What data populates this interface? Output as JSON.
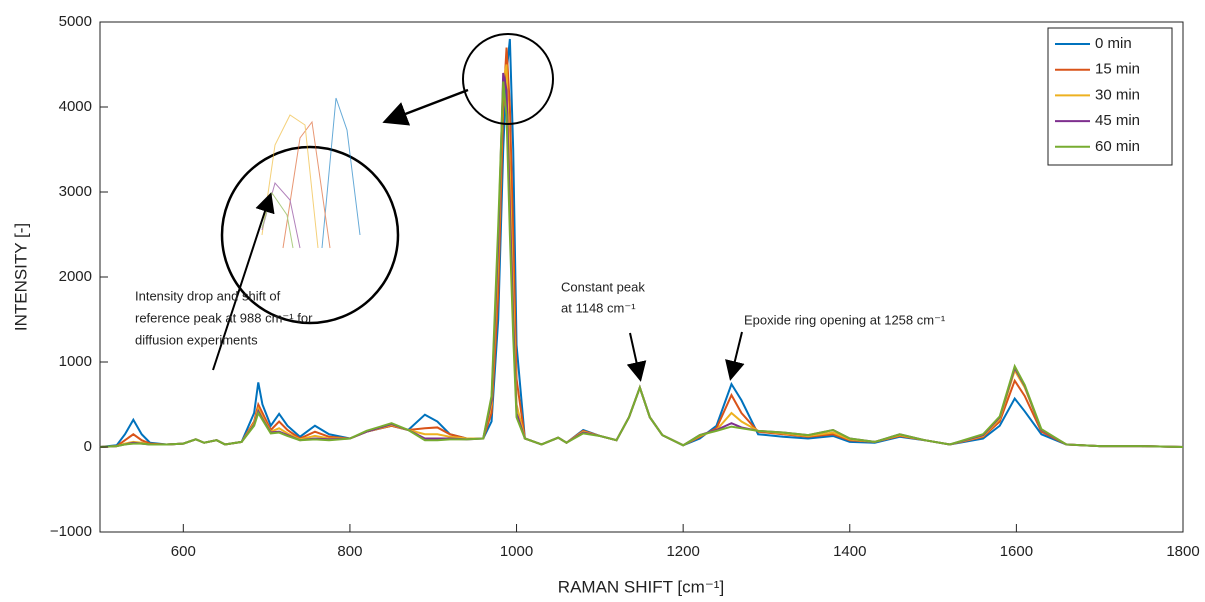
{
  "chart_data": {
    "type": "line",
    "xlabel": "RAMAN SHIFT [cm⁻¹]",
    "ylabel": "INTENSITY [-]",
    "x": [
      500,
      520,
      530,
      540,
      550,
      560,
      580,
      600,
      615,
      625,
      640,
      650,
      670,
      685,
      690,
      695,
      705,
      715,
      725,
      740,
      758,
      775,
      800,
      820,
      850,
      870,
      890,
      905,
      920,
      940,
      960,
      970,
      978,
      984,
      988,
      992,
      996,
      1000,
      1010,
      1030,
      1050,
      1060,
      1080,
      1100,
      1120,
      1135,
      1148,
      1160,
      1175,
      1200,
      1220,
      1240,
      1258,
      1270,
      1290,
      1320,
      1350,
      1380,
      1400,
      1430,
      1460,
      1490,
      1520,
      1560,
      1580,
      1598,
      1610,
      1630,
      1660,
      1700,
      1750,
      1800
    ],
    "series": [
      {
        "name": "0 min",
        "color": "#0072bd",
        "values": [
          0,
          20,
          150,
          320,
          150,
          50,
          30,
          40,
          90,
          50,
          80,
          30,
          60,
          400,
          760,
          500,
          250,
          390,
          250,
          120,
          250,
          150,
          100,
          180,
          250,
          200,
          380,
          300,
          150,
          100,
          100,
          300,
          1500,
          3500,
          4400,
          4800,
          3500,
          1200,
          100,
          30,
          110,
          50,
          200,
          130,
          80,
          350,
          700,
          350,
          140,
          20,
          100,
          250,
          740,
          550,
          150,
          120,
          100,
          130,
          60,
          50,
          120,
          80,
          30,
          100,
          250,
          570,
          420,
          150,
          30,
          10,
          10,
          0
        ]
      },
      {
        "name": "15 min",
        "color": "#d95319",
        "values": [
          0,
          10,
          80,
          150,
          80,
          40,
          30,
          40,
          90,
          50,
          80,
          30,
          60,
          300,
          500,
          400,
          200,
          300,
          200,
          100,
          180,
          120,
          100,
          180,
          250,
          200,
          220,
          230,
          150,
          100,
          100,
          400,
          1800,
          4000,
          4700,
          4000,
          2500,
          800,
          100,
          30,
          110,
          50,
          190,
          130,
          80,
          350,
          700,
          350,
          140,
          20,
          120,
          220,
          610,
          400,
          180,
          150,
          120,
          150,
          80,
          60,
          130,
          80,
          30,
          120,
          300,
          780,
          600,
          180,
          30,
          10,
          10,
          0
        ]
      },
      {
        "name": "30 min",
        "color": "#edb120",
        "values": [
          0,
          10,
          40,
          60,
          50,
          30,
          30,
          40,
          90,
          50,
          80,
          30,
          60,
          280,
          450,
          350,
          180,
          220,
          160,
          90,
          130,
          100,
          100,
          180,
          260,
          200,
          150,
          150,
          120,
          100,
          100,
          500,
          2200,
          4300,
          4500,
          3200,
          1800,
          500,
          100,
          30,
          110,
          50,
          180,
          130,
          80,
          350,
          700,
          350,
          140,
          20,
          130,
          200,
          400,
          300,
          190,
          160,
          130,
          170,
          90,
          60,
          140,
          80,
          30,
          130,
          330,
          900,
          700,
          200,
          30,
          10,
          10,
          0
        ]
      },
      {
        "name": "45 min",
        "color": "#7e2f8e",
        "values": [
          0,
          10,
          30,
          50,
          40,
          30,
          30,
          40,
          90,
          50,
          80,
          30,
          60,
          260,
          420,
          330,
          170,
          180,
          140,
          80,
          100,
          90,
          100,
          180,
          270,
          200,
          100,
          100,
          100,
          90,
          100,
          550,
          2400,
          4400,
          4200,
          2800,
          1500,
          400,
          100,
          30,
          110,
          50,
          170,
          130,
          80,
          350,
          700,
          350,
          140,
          20,
          140,
          200,
          280,
          230,
          190,
          170,
          140,
          200,
          100,
          60,
          150,
          80,
          30,
          140,
          350,
          930,
          720,
          200,
          30,
          10,
          10,
          0
        ]
      },
      {
        "name": "60 min",
        "color": "#77ac30",
        "values": [
          0,
          10,
          30,
          40,
          40,
          30,
          30,
          40,
          90,
          50,
          80,
          30,
          60,
          250,
          400,
          320,
          160,
          170,
          130,
          80,
          90,
          80,
          100,
          190,
          280,
          200,
          80,
          80,
          90,
          90,
          100,
          600,
          2600,
          4300,
          3900,
          2500,
          1300,
          350,
          100,
          30,
          110,
          50,
          160,
          130,
          80,
          350,
          700,
          350,
          140,
          20,
          140,
          190,
          240,
          220,
          190,
          170,
          140,
          200,
          100,
          60,
          150,
          80,
          30,
          150,
          360,
          950,
          730,
          210,
          30,
          10,
          10,
          0
        ]
      }
    ],
    "xlim": [
      500,
      1800
    ],
    "xticks": [
      600,
      800,
      1000,
      1200,
      1400,
      1600,
      1800
    ],
    "ylim": [
      -1000,
      5000
    ],
    "yticks": [
      {
        "value": -1000,
        "label": "−1000"
      },
      0,
      1000,
      2000,
      3000,
      4000,
      5000
    ],
    "grid": false,
    "legend": "top-right",
    "annotations": [
      {
        "lines": [
          "Intensity drop and shift of",
          "reference peak at 988 cm⁻¹ for",
          "diffusion experiments"
        ]
      },
      {
        "lines": [
          "Constant peak",
          "at 1148 cm⁻¹"
        ]
      },
      {
        "lines": [
          "Epoxide ring opening at 1258 cm⁻¹"
        ]
      }
    ]
  }
}
